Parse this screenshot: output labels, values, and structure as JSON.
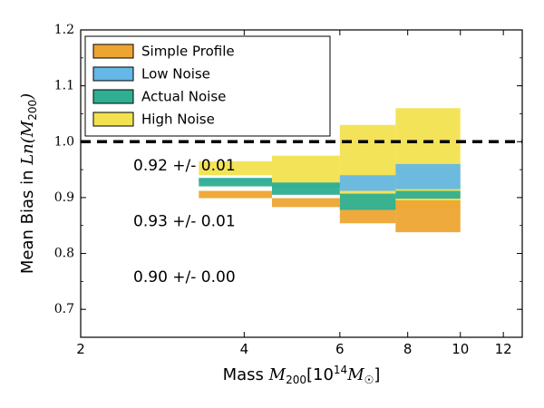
{
  "chart_data": {
    "type": "area",
    "xlabel": "Mass",
    "xlabel_math": "M",
    "xlabel_math_sub": "200",
    "xlabel_units_open": "[10",
    "xlabel_units_exp": "14",
    "xlabel_units_math": "M",
    "xlabel_units_sub": "☉",
    "xlabel_units_close": "]",
    "ylabel": "Mean Bias in",
    "ylabel_math": "Ln(M",
    "ylabel_math_sub": "200",
    "ylabel_math_close": ")",
    "x_scale": "log",
    "xlim": [
      2,
      13
    ],
    "ylim": [
      0.65,
      1.2
    ],
    "xticks": [
      2,
      4,
      6,
      8,
      10,
      12
    ],
    "yticks": [
      0.7,
      0.8,
      0.9,
      1.0,
      1.1,
      1.2
    ],
    "ytick_labels": [
      "0.7",
      "0.8",
      "0.9",
      "1.0",
      "1.1",
      "1.2"
    ],
    "reference_line": {
      "y": 1.0,
      "style": "dashed",
      "color": "#000000"
    },
    "bin_edges": [
      3.3,
      4.5,
      6.0,
      7.6,
      10.0
    ],
    "legend_position": "top-left",
    "series": [
      {
        "name": "High Noise",
        "color": "#f2e250",
        "lower": [
          0.94,
          0.92,
          0.88,
          0.88
        ],
        "upper": [
          0.965,
          0.975,
          1.03,
          1.06
        ]
      },
      {
        "name": "Simple Profile",
        "color": "#eda532",
        "lower": [
          0.899,
          0.883,
          0.854,
          0.838
        ],
        "upper": [
          0.912,
          0.899,
          0.882,
          0.895
        ]
      },
      {
        "name": "Low Noise",
        "color": "#64b7e6",
        "lower": [
          0.928,
          0.918,
          0.912,
          0.915
        ],
        "upper": [
          0.935,
          0.925,
          0.94,
          0.96
        ]
      },
      {
        "name": "Actual Noise",
        "color": "#2fae92",
        "lower": [
          0.92,
          0.905,
          0.878,
          0.898
        ],
        "upper": [
          0.935,
          0.927,
          0.907,
          0.912
        ]
      }
    ],
    "legend": [
      {
        "name": "Simple Profile",
        "color": "#eda532"
      },
      {
        "name": "Low Noise",
        "color": "#64b7e6"
      },
      {
        "name": "Actual Noise",
        "color": "#2fae92"
      },
      {
        "name": "High Noise",
        "color": "#f2e250"
      }
    ],
    "annotations": [
      {
        "text": "0.92 +/- 0.01",
        "x": 2.5,
        "y": 0.957
      },
      {
        "text": "0.93 +/- 0.01",
        "x": 2.5,
        "y": 0.857
      },
      {
        "text": "0.90 +/- 0.00",
        "x": 2.5,
        "y": 0.757
      }
    ]
  }
}
